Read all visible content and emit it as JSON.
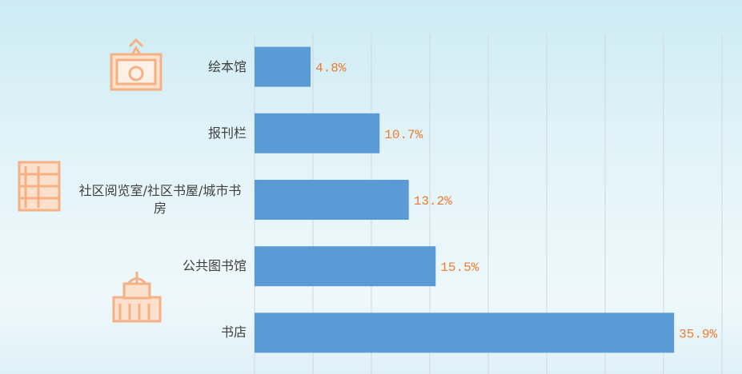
{
  "chart_data": {
    "type": "bar",
    "orientation": "horizontal",
    "categories": [
      "绘本馆",
      "报刊栏",
      "社区阅览室/社区书屋/城市书房",
      "公共图书馆",
      "书店"
    ],
    "values": [
      4.8,
      10.7,
      13.2,
      15.5,
      35.9
    ],
    "value_labels": [
      "4.8%",
      "10.7%",
      "13.2%",
      "15.5%",
      "35.9%"
    ],
    "color": "#5b9bd5",
    "label_color": "#ed7d31",
    "xlim": [
      0,
      40
    ],
    "xticks": [
      0,
      5,
      10,
      15,
      20,
      25,
      30,
      35,
      40
    ],
    "grid": true
  }
}
